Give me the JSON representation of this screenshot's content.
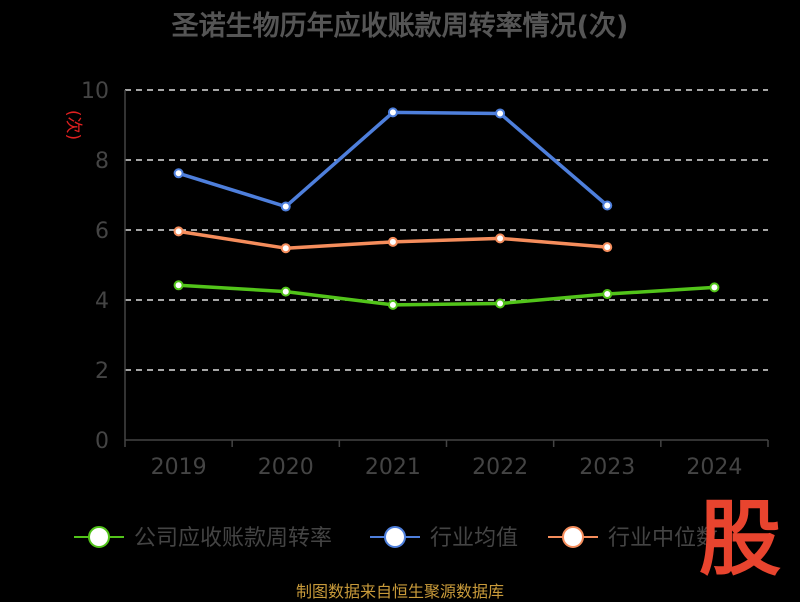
{
  "chart_data": {
    "type": "line",
    "title": "圣诺生物历年应收账款周转率情况(次)",
    "ylabel": "(次)",
    "categories": [
      "2019",
      "2020",
      "2021",
      "2022",
      "2023",
      "2024"
    ],
    "ylim": [
      0,
      10
    ],
    "yticks": [
      "0",
      "2",
      "4",
      "6",
      "8",
      "10"
    ],
    "grid": true,
    "legend_position": "bottom",
    "series": [
      {
        "name": "公司应收账款周转率",
        "color": "#52c41a",
        "values": [
          4.42,
          4.24,
          3.86,
          3.9,
          4.17,
          4.36
        ]
      },
      {
        "name": "行业均值",
        "color": "#4e7fdc",
        "values": [
          7.62,
          6.67,
          9.36,
          9.33,
          6.7,
          null
        ]
      },
      {
        "name": "行业中位数",
        "color": "#f58d5c",
        "values": [
          5.96,
          5.48,
          5.66,
          5.76,
          5.51,
          null
        ]
      }
    ]
  },
  "footer": {
    "source": "制图数据来自恒生聚源数据库"
  },
  "watermark": {
    "text": "股"
  }
}
